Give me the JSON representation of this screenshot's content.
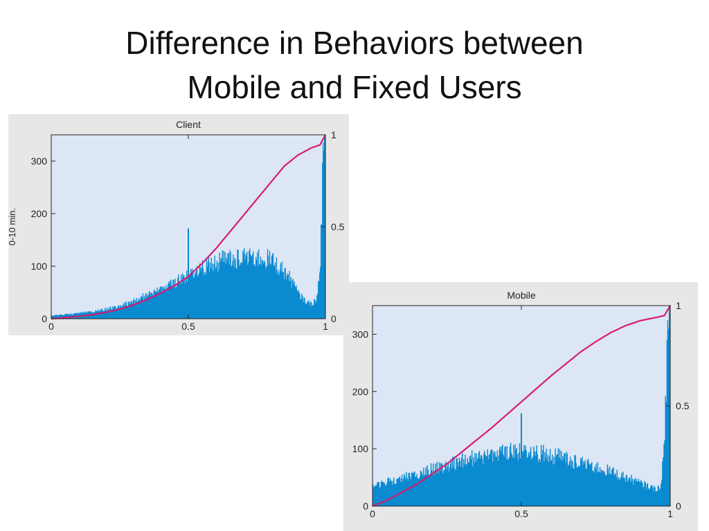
{
  "slide": {
    "title_line1": "Difference in Behaviors between",
    "title_line2": "Mobile and Fixed Users"
  },
  "colors": {
    "plot_background": "#dce6f4",
    "panel_background": "#e7e7e7",
    "histogram": "#0a8ad0",
    "cdf_line": "#d81b6e"
  },
  "chart_data": [
    {
      "type": "bar",
      "title": "Client",
      "ylabel": "0-10 min.",
      "xlabel": "",
      "xlim": [
        0,
        1
      ],
      "ylim": [
        0,
        350
      ],
      "y2lim": [
        0,
        1
      ],
      "xticks": [
        "0",
        "0.5",
        "1"
      ],
      "yticks": [
        "0",
        "100",
        "200",
        "300"
      ],
      "y2ticks": [
        "0",
        "0.5",
        "1"
      ],
      "grid": false,
      "series": [
        {
          "kind": "histogram",
          "x": [
            0.0,
            0.05,
            0.1,
            0.15,
            0.2,
            0.25,
            0.3,
            0.35,
            0.4,
            0.45,
            0.5,
            0.55,
            0.6,
            0.65,
            0.7,
            0.75,
            0.8,
            0.85,
            0.88,
            0.9,
            0.93,
            0.95,
            0.97,
            0.98,
            0.99,
            1.0
          ],
          "values": [
            6,
            8,
            11,
            14,
            18,
            24,
            33,
            45,
            56,
            68,
            82,
            98,
            108,
            114,
            118,
            116,
            112,
            90,
            70,
            48,
            32,
            28,
            40,
            95,
            290,
            350
          ]
        },
        {
          "kind": "cdf",
          "x": [
            0.0,
            0.05,
            0.1,
            0.15,
            0.2,
            0.25,
            0.3,
            0.35,
            0.4,
            0.45,
            0.5,
            0.55,
            0.6,
            0.65,
            0.7,
            0.75,
            0.8,
            0.85,
            0.9,
            0.95,
            0.98,
            1.0
          ],
          "values": [
            0.0,
            0.006,
            0.013,
            0.022,
            0.035,
            0.052,
            0.075,
            0.105,
            0.14,
            0.18,
            0.23,
            0.3,
            0.38,
            0.47,
            0.56,
            0.65,
            0.74,
            0.83,
            0.89,
            0.93,
            0.945,
            1.0
          ]
        }
      ],
      "spikes": [
        {
          "x": 0.5,
          "value": 172
        }
      ]
    },
    {
      "type": "bar",
      "title": "Mobile",
      "ylabel": "",
      "xlabel": "",
      "xlim": [
        0,
        1
      ],
      "ylim": [
        0,
        350
      ],
      "y2lim": [
        0,
        1
      ],
      "xticks": [
        "0",
        "0.5",
        "1"
      ],
      "yticks": [
        "0",
        "100",
        "200",
        "300"
      ],
      "y2ticks": [
        "0",
        "0.5",
        "1"
      ],
      "grid": false,
      "series": [
        {
          "kind": "histogram",
          "x": [
            0.0,
            0.05,
            0.1,
            0.15,
            0.2,
            0.25,
            0.3,
            0.35,
            0.4,
            0.45,
            0.5,
            0.55,
            0.6,
            0.65,
            0.7,
            0.75,
            0.8,
            0.85,
            0.9,
            0.93,
            0.95,
            0.97,
            0.98,
            0.99,
            1.0
          ],
          "values": [
            35,
            42,
            50,
            57,
            64,
            72,
            79,
            85,
            90,
            94,
            96,
            94,
            89,
            83,
            76,
            68,
            60,
            50,
            40,
            34,
            30,
            35,
            120,
            280,
            340
          ]
        },
        {
          "kind": "cdf",
          "x": [
            0.0,
            0.05,
            0.1,
            0.15,
            0.2,
            0.25,
            0.3,
            0.35,
            0.4,
            0.45,
            0.5,
            0.55,
            0.6,
            0.65,
            0.7,
            0.75,
            0.8,
            0.85,
            0.9,
            0.95,
            0.98,
            1.0
          ],
          "values": [
            0.0,
            0.03,
            0.07,
            0.11,
            0.16,
            0.21,
            0.27,
            0.33,
            0.39,
            0.455,
            0.52,
            0.585,
            0.65,
            0.71,
            0.77,
            0.82,
            0.865,
            0.9,
            0.925,
            0.94,
            0.95,
            1.0
          ]
        }
      ],
      "spikes": [
        {
          "x": 0.5,
          "value": 162
        }
      ]
    }
  ]
}
